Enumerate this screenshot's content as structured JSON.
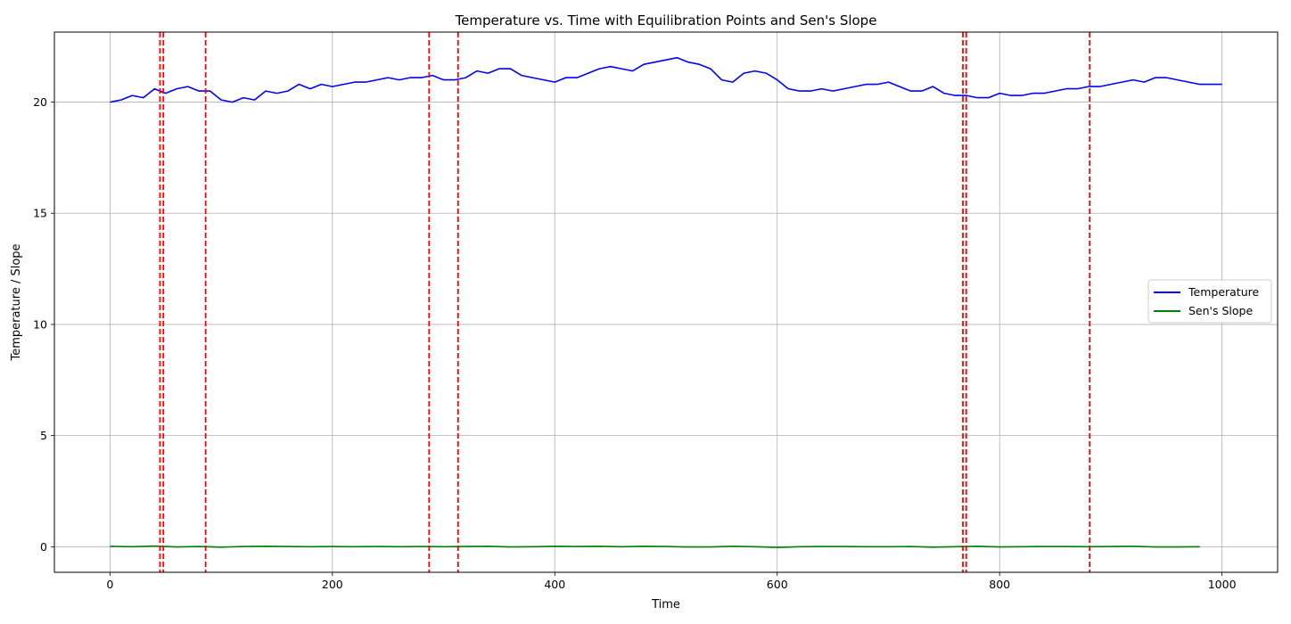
{
  "chart_data": {
    "type": "line",
    "title": "Temperature vs. Time with Equilibration Points and Sen's Slope",
    "xlabel": "Time",
    "ylabel": "Temperature / Slope",
    "xlim": [
      -50,
      1050
    ],
    "ylim": [
      -1.15,
      23.15
    ],
    "xticks": [
      0,
      200,
      400,
      600,
      800,
      1000
    ],
    "xtick_labels": [
      "0",
      "200",
      "400",
      "600",
      "800",
      "1000"
    ],
    "yticks": [
      0,
      5,
      10,
      15,
      20
    ],
    "ytick_labels": [
      "0",
      "5",
      "10",
      "15",
      "20"
    ],
    "grid": true,
    "legend_position": "right",
    "series": [
      {
        "name": "Temperature",
        "color": "#0000ff",
        "x": [
          0,
          10,
          20,
          30,
          40,
          50,
          60,
          70,
          80,
          90,
          100,
          110,
          120,
          130,
          140,
          150,
          160,
          170,
          180,
          190,
          200,
          210,
          220,
          230,
          240,
          250,
          260,
          270,
          280,
          290,
          300,
          310,
          320,
          330,
          340,
          350,
          360,
          370,
          380,
          390,
          400,
          410,
          420,
          430,
          440,
          450,
          460,
          470,
          480,
          490,
          500,
          510,
          520,
          530,
          540,
          550,
          560,
          570,
          580,
          590,
          600,
          610,
          620,
          630,
          640,
          650,
          660,
          670,
          680,
          690,
          700,
          710,
          720,
          730,
          740,
          750,
          760,
          770,
          780,
          790,
          800,
          810,
          820,
          830,
          840,
          850,
          860,
          870,
          880,
          890,
          900,
          910,
          920,
          930,
          940,
          950,
          960,
          970,
          980,
          990,
          1000
        ],
        "values": [
          20.0,
          20.1,
          20.3,
          20.2,
          20.6,
          20.4,
          20.6,
          20.7,
          20.5,
          20.5,
          20.1,
          20.0,
          20.2,
          20.1,
          20.5,
          20.4,
          20.5,
          20.8,
          20.6,
          20.8,
          20.7,
          20.8,
          20.9,
          20.9,
          21.0,
          21.1,
          21.0,
          21.1,
          21.1,
          21.2,
          21.0,
          21.0,
          21.1,
          21.4,
          21.3,
          21.5,
          21.5,
          21.2,
          21.1,
          21.0,
          20.9,
          21.1,
          21.1,
          21.3,
          21.5,
          21.6,
          21.5,
          21.4,
          21.7,
          21.8,
          21.9,
          22.0,
          21.8,
          21.7,
          21.5,
          21.0,
          20.9,
          21.3,
          21.4,
          21.3,
          21.0,
          20.6,
          20.5,
          20.5,
          20.6,
          20.5,
          20.6,
          20.7,
          20.8,
          20.8,
          20.9,
          20.7,
          20.5,
          20.5,
          20.7,
          20.4,
          20.3,
          20.3,
          20.2,
          20.2,
          20.4,
          20.3,
          20.3,
          20.4,
          20.4,
          20.5,
          20.6,
          20.6,
          20.7,
          20.7,
          20.8,
          20.9,
          21.0,
          20.9,
          21.1,
          21.1,
          21.0,
          20.9,
          20.8,
          20.8,
          20.8
        ]
      },
      {
        "name": "Sen's Slope",
        "color": "#008000",
        "x": [
          0,
          20,
          40,
          60,
          80,
          100,
          120,
          140,
          160,
          180,
          200,
          220,
          240,
          260,
          280,
          300,
          320,
          340,
          360,
          380,
          400,
          420,
          440,
          460,
          480,
          500,
          520,
          540,
          560,
          580,
          600,
          620,
          640,
          660,
          680,
          700,
          720,
          740,
          760,
          780,
          800,
          820,
          840,
          860,
          880,
          900,
          920,
          940,
          960,
          980
        ],
        "values": [
          0.02,
          0.0,
          0.03,
          -0.01,
          0.01,
          -0.02,
          0.01,
          0.02,
          0.01,
          0.0,
          0.01,
          0.0,
          0.01,
          0.0,
          0.01,
          0.0,
          0.01,
          0.02,
          -0.01,
          0.0,
          0.02,
          0.01,
          0.02,
          0.0,
          0.02,
          0.01,
          -0.01,
          -0.01,
          0.02,
          0.0,
          -0.03,
          0.0,
          0.01,
          0.01,
          0.0,
          0.0,
          0.01,
          -0.02,
          0.0,
          0.02,
          -0.01,
          0.0,
          0.01,
          0.01,
          0.0,
          0.01,
          0.02,
          -0.01,
          -0.01,
          0.0
        ]
      }
    ],
    "equilibration_points": {
      "color": "#ff0000",
      "style": "dashed",
      "x": [
        45,
        48,
        86,
        287,
        313,
        767,
        770,
        881
      ]
    }
  }
}
